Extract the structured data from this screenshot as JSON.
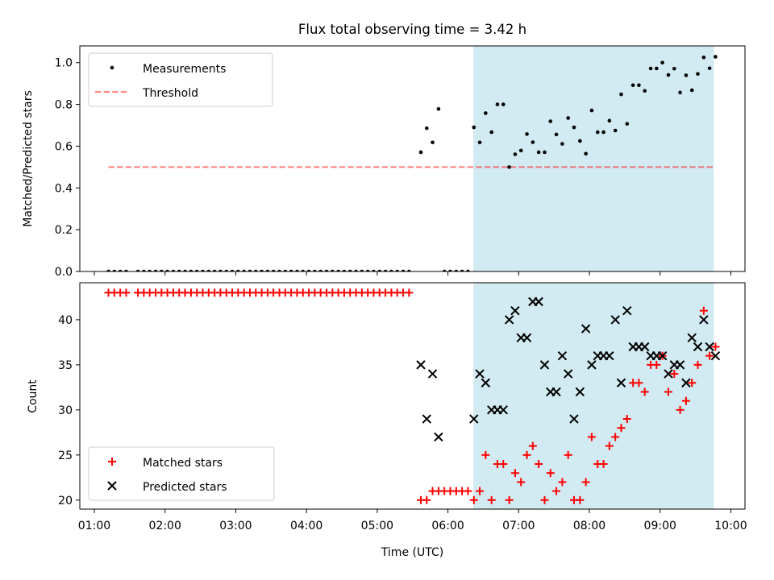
{
  "chart_data": {
    "title": "Flux total observing time = 3.42 h",
    "xlabel": "Time (UTC)",
    "x_ticks": [
      "01:00",
      "02:00",
      "03:00",
      "04:00",
      "05:00",
      "06:00",
      "07:00",
      "08:00",
      "09:00",
      "10:00"
    ],
    "xlim_hours": [
      0.795,
      10.2
    ],
    "shaded_span_hours": [
      6.36,
      9.76
    ],
    "colors": {
      "shade": "#add8e6",
      "threshold": "#ff0000",
      "measurements": "#000000",
      "matched": "#ff0000",
      "predicted": "#000000"
    },
    "top": {
      "type": "scatter",
      "ylabel": "Matched/Predicted stars",
      "ylim": [
        0,
        1.08
      ],
      "y_ticks": [
        "0.0",
        "0.2",
        "0.4",
        "0.6",
        "0.8",
        "1.0"
      ],
      "y_tick_values": [
        0,
        0.2,
        0.4,
        0.6,
        0.8,
        1.0
      ],
      "threshold": {
        "value": 0.5,
        "x_range_hours": [
          1.2,
          9.76
        ]
      },
      "legend": {
        "location": "upper-left",
        "entries": [
          "Measurements",
          "Threshold"
        ]
      },
      "series": [
        {
          "name": "Measurements",
          "x_hours": [
            1.2,
            1.283,
            1.367,
            1.45,
            1.617,
            1.7,
            1.783,
            1.867,
            1.95,
            2.033,
            2.117,
            2.2,
            2.283,
            2.367,
            2.45,
            2.533,
            2.617,
            2.7,
            2.783,
            2.867,
            2.95,
            3.033,
            3.117,
            3.2,
            3.283,
            3.367,
            3.45,
            3.533,
            3.617,
            3.7,
            3.783,
            3.867,
            3.95,
            4.033,
            4.117,
            4.2,
            4.283,
            4.367,
            4.45,
            4.533,
            4.617,
            4.7,
            4.783,
            4.867,
            4.95,
            5.033,
            5.117,
            5.2,
            5.283,
            5.367,
            5.45,
            5.617,
            5.7,
            5.783,
            5.867,
            5.95,
            6.033,
            6.117,
            6.2,
            6.283,
            6.367,
            6.45,
            6.533,
            6.617,
            6.7,
            6.783,
            6.867,
            6.95,
            7.033,
            7.117,
            7.2,
            7.283,
            7.367,
            7.45,
            7.533,
            7.617,
            7.7,
            7.783,
            7.867,
            7.95,
            8.033,
            8.117,
            8.2,
            8.283,
            8.367,
            8.45,
            8.533,
            8.617,
            8.7,
            8.783,
            8.867,
            8.95,
            9.033,
            9.117,
            9.2,
            9.283,
            9.367,
            9.45,
            9.533,
            9.617,
            9.7,
            9.783
          ],
          "y": [
            0,
            0,
            0,
            0,
            0,
            0,
            0,
            0,
            0,
            0,
            0,
            0,
            0,
            0,
            0,
            0,
            0,
            0,
            0,
            0,
            0,
            0,
            0,
            0,
            0,
            0,
            0,
            0,
            0,
            0,
            0,
            0,
            0,
            0,
            0,
            0,
            0,
            0,
            0,
            0,
            0,
            0,
            0,
            0,
            0,
            0,
            0,
            0,
            0,
            0,
            0,
            0.571,
            0.686,
            0.618,
            0.778,
            0,
            0,
            0,
            0,
            0,
            0.69,
            0.618,
            0.758,
            0.667,
            0.8,
            0.8,
            0.5,
            0.561,
            0.579,
            0.658,
            0.619,
            0.571,
            0.571,
            0.719,
            0.656,
            0.611,
            0.735,
            0.69,
            0.625,
            0.564,
            0.771,
            0.667,
            0.667,
            0.722,
            0.675,
            0.848,
            0.707,
            0.892,
            0.892,
            0.865,
            0.972,
            0.972,
            1.0,
            0.941,
            0.971,
            0.857,
            0.939,
            0.868,
            0.946,
            1.025,
            0.973,
            1.028
          ]
        }
      ]
    },
    "bottom": {
      "type": "scatter",
      "ylabel": "Count",
      "ylim": [
        19.0,
        44.1
      ],
      "y_ticks": [
        "20",
        "25",
        "30",
        "35",
        "40"
      ],
      "y_tick_values": [
        20,
        25,
        30,
        35,
        40
      ],
      "legend": {
        "location": "lower-left",
        "entries": [
          "Matched stars",
          "Predicted stars"
        ]
      },
      "series": [
        {
          "name": "Matched stars",
          "marker": "+",
          "x_hours": [
            1.2,
            1.283,
            1.367,
            1.45,
            1.617,
            1.7,
            1.783,
            1.867,
            1.95,
            2.033,
            2.117,
            2.2,
            2.283,
            2.367,
            2.45,
            2.533,
            2.617,
            2.7,
            2.783,
            2.867,
            2.95,
            3.033,
            3.117,
            3.2,
            3.283,
            3.367,
            3.45,
            3.533,
            3.617,
            3.7,
            3.783,
            3.867,
            3.95,
            4.033,
            4.117,
            4.2,
            4.283,
            4.367,
            4.45,
            4.533,
            4.617,
            4.7,
            4.783,
            4.867,
            4.95,
            5.033,
            5.117,
            5.2,
            5.283,
            5.367,
            5.45,
            5.617,
            5.7,
            5.783,
            5.867,
            5.95,
            6.033,
            6.117,
            6.2,
            6.283,
            6.367,
            6.45,
            6.533,
            6.617,
            6.7,
            6.783,
            6.867,
            6.95,
            7.033,
            7.117,
            7.2,
            7.283,
            7.367,
            7.45,
            7.533,
            7.617,
            7.7,
            7.783,
            7.867,
            7.95,
            8.033,
            8.117,
            8.2,
            8.283,
            8.367,
            8.45,
            8.533,
            8.617,
            8.7,
            8.783,
            8.867,
            8.95,
            9.033,
            9.117,
            9.2,
            9.283,
            9.367,
            9.45,
            9.533,
            9.617,
            9.7,
            9.783
          ],
          "y": [
            43,
            43,
            43,
            43,
            43,
            43,
            43,
            43,
            43,
            43,
            43,
            43,
            43,
            43,
            43,
            43,
            43,
            43,
            43,
            43,
            43,
            43,
            43,
            43,
            43,
            43,
            43,
            43,
            43,
            43,
            43,
            43,
            43,
            43,
            43,
            43,
            43,
            43,
            43,
            43,
            43,
            43,
            43,
            43,
            43,
            43,
            43,
            43,
            43,
            43,
            43,
            20,
            20,
            21,
            21,
            21,
            21,
            21,
            21,
            21,
            20,
            21,
            25,
            20,
            24,
            24,
            20,
            23,
            22,
            25,
            26,
            24,
            20,
            23,
            21,
            22,
            25,
            20,
            20,
            22,
            27,
            24,
            24,
            26,
            27,
            28,
            29,
            33,
            33,
            32,
            35,
            35,
            36,
            32,
            34,
            30,
            31,
            33,
            35,
            41,
            36,
            37
          ]
        },
        {
          "name": "Predicted stars",
          "marker": "x",
          "x_hours": [
            5.617,
            5.7,
            5.783,
            5.867,
            6.367,
            6.45,
            6.533,
            6.617,
            6.7,
            6.783,
            6.867,
            6.95,
            7.033,
            7.117,
            7.2,
            7.283,
            7.367,
            7.45,
            7.533,
            7.617,
            7.7,
            7.783,
            7.867,
            7.95,
            8.033,
            8.117,
            8.2,
            8.283,
            8.367,
            8.45,
            8.533,
            8.617,
            8.7,
            8.783,
            8.867,
            8.95,
            9.033,
            9.117,
            9.2,
            9.283,
            9.367,
            9.45,
            9.533,
            9.617,
            9.7,
            9.783
          ],
          "y": [
            35,
            29,
            34,
            27,
            29,
            34,
            33,
            30,
            30,
            30,
            40,
            41,
            38,
            38,
            42,
            42,
            35,
            32,
            32,
            36,
            34,
            29,
            32,
            39,
            35,
            36,
            36,
            36,
            40,
            33,
            41,
            37,
            37,
            37,
            36,
            36,
            36,
            34,
            35,
            35,
            33,
            38,
            37,
            40,
            37,
            36
          ]
        }
      ]
    }
  }
}
